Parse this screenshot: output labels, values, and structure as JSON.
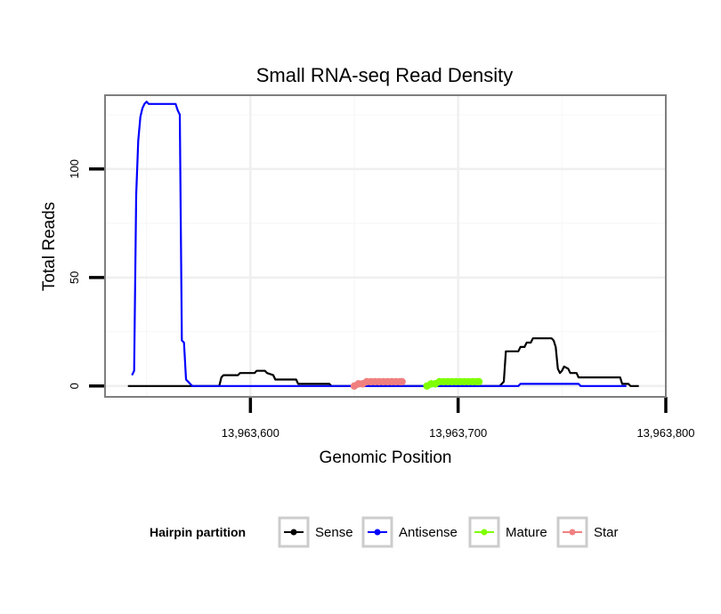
{
  "chart_data": {
    "type": "line",
    "title": "Small RNA-seq Read Density",
    "xlabel": "Genomic Position",
    "ylabel": "Total Reads",
    "xlim": [
      13963530,
      13963800
    ],
    "ylim": [
      -5,
      134
    ],
    "x_ticks": [
      {
        "value": 13963600,
        "label": "13,963,600"
      },
      {
        "value": 13963700,
        "label": "13,963,700"
      },
      {
        "value": 13963800,
        "label": "13,963,800"
      }
    ],
    "y_ticks": [
      {
        "value": 0,
        "label": "0"
      },
      {
        "value": 50,
        "label": "50"
      },
      {
        "value": 100,
        "label": "100"
      }
    ],
    "grid": true,
    "legend": {
      "title": "Hairpin partition",
      "position": "bottom",
      "entries": [
        {
          "name": "Sense",
          "color": "#000000"
        },
        {
          "name": "Antisense",
          "color": "#0000ff"
        },
        {
          "name": "Mature",
          "color": "#7fff00"
        },
        {
          "name": "Star",
          "color": "#f08080"
        }
      ]
    },
    "series": [
      {
        "name": "Sense",
        "color": "#000000",
        "style": "line",
        "x": [
          13963541,
          13963573,
          13963574,
          13963585,
          13963586,
          13963587,
          13963594,
          13963595,
          13963602,
          13963603,
          13963607,
          13963608,
          13963611,
          13963612,
          13963622,
          13963623,
          13963638,
          13963639,
          13963720,
          13963721,
          13963722,
          13963723,
          13963729,
          13963730,
          13963732,
          13963733,
          13963735,
          13963736,
          13963745,
          13963746,
          13963747,
          13963748,
          13963749,
          13963750,
          13963751,
          13963753,
          13963754,
          13963757,
          13963758,
          13963778,
          13963779,
          13963782,
          13963783,
          13963787
        ],
        "y": [
          0,
          0,
          0,
          0,
          4,
          5,
          5,
          6,
          6,
          7,
          7,
          6,
          5,
          3,
          3,
          1,
          1,
          0,
          0,
          1,
          2,
          16,
          16,
          18,
          18,
          20,
          20,
          22,
          22,
          21,
          18,
          8,
          6,
          7,
          9,
          8,
          6,
          6,
          4,
          4,
          1,
          1,
          0,
          0
        ]
      },
      {
        "name": "Antisense",
        "color": "#0000ff",
        "style": "line",
        "x": [
          13963543,
          13963544,
          13963545,
          13963546,
          13963547,
          13963548,
          13963549,
          13963550,
          13963551,
          13963552,
          13963561,
          13963562,
          13963563,
          13963564,
          13963565,
          13963566,
          13963567,
          13963568,
          13963569,
          13963570,
          13963571,
          13963572,
          13963573,
          13963722,
          13963729,
          13963730,
          13963758,
          13963759,
          13963781
        ],
        "y": [
          5,
          7,
          88,
          113,
          124,
          128,
          130,
          131,
          130,
          130,
          130,
          130,
          130,
          130,
          127,
          125,
          21,
          20,
          3,
          2,
          1,
          0,
          0,
          0,
          0,
          1,
          1,
          0,
          0
        ]
      },
      {
        "name": "Mature",
        "color": "#7fff00",
        "style": "dotted-band",
        "x": [
          13963685,
          13963687,
          13963689,
          13963691,
          13963693,
          13963695,
          13963697,
          13963699,
          13963701,
          13963703,
          13963705,
          13963707,
          13963709,
          13963710
        ],
        "y": [
          0,
          1,
          1,
          2,
          2,
          2,
          2,
          2,
          2,
          2,
          2,
          2,
          2,
          2
        ]
      },
      {
        "name": "Star",
        "color": "#f08080",
        "style": "dotted-band",
        "x": [
          13963650,
          13963652,
          13963654,
          13963656,
          13963658,
          13963660,
          13963662,
          13963664,
          13963666,
          13963668,
          13963670,
          13963672,
          13963673
        ],
        "y": [
          0,
          1,
          1,
          2,
          2,
          2,
          2,
          2,
          2,
          2,
          2,
          2,
          2
        ]
      }
    ]
  }
}
